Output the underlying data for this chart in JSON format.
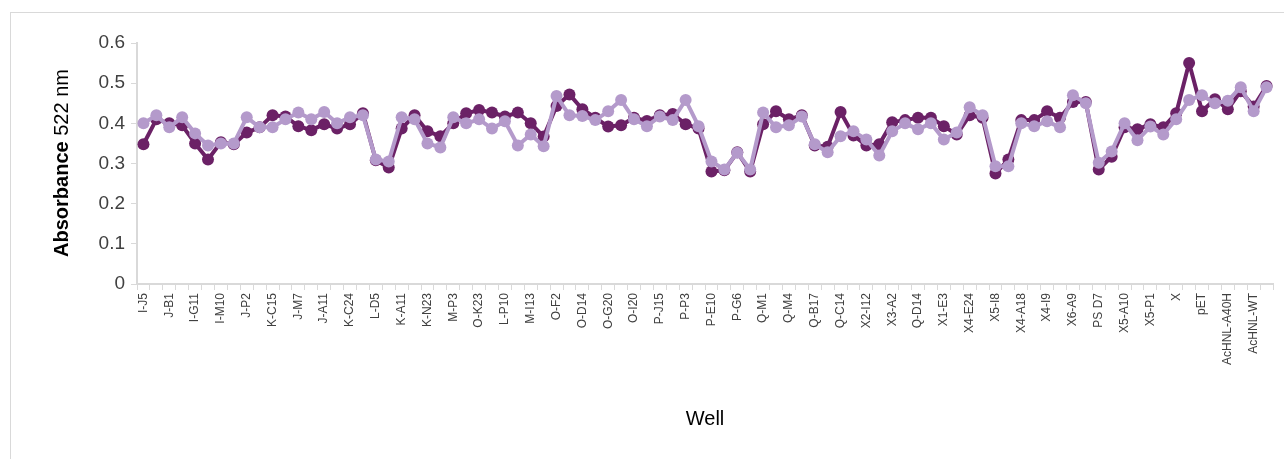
{
  "chart_data": {
    "type": "line",
    "xlabel": "Well",
    "ylabel": "Absorbance 522 nm",
    "categories": [
      "I-J5",
      null,
      "J-B1",
      null,
      "I-G11",
      null,
      "I-M10",
      null,
      "J-P2",
      null,
      "K-C15",
      null,
      "J-M7",
      null,
      "J-A11",
      null,
      "K-C24",
      null,
      "L-D5",
      null,
      "K-A11",
      null,
      "K-N23",
      null,
      "M-P3",
      null,
      "O-K23",
      null,
      "L-P10",
      null,
      "M-I13",
      null,
      "O-F2",
      null,
      "O-D14",
      null,
      "O-G20",
      null,
      "O-I20",
      null,
      "P-J15",
      null,
      "P-P3",
      null,
      "P-E10",
      null,
      "P-G6",
      null,
      "Q-M1",
      null,
      "Q-M4",
      null,
      "Q-B17",
      null,
      "Q-C14",
      null,
      "X2-I12",
      null,
      "X3-A2",
      null,
      "Q-D14",
      null,
      "X1-E3",
      null,
      "X4-E24",
      null,
      "X5-I8",
      null,
      "X4-A18",
      null,
      "X4-I9",
      null,
      "X6-A9",
      null,
      "PS D7",
      null,
      "X5-A10",
      null,
      "X5-P1",
      null,
      "X",
      null,
      "pET",
      null,
      "AcHNL-A40H",
      null,
      "AcHNL-WT",
      null
    ],
    "series": [
      {
        "color": "#b49acb",
        "values": [
          0.4,
          0.42,
          0.39,
          0.415,
          0.375,
          0.345,
          0.35,
          0.35,
          0.415,
          0.39,
          0.39,
          0.41,
          0.427,
          0.41,
          0.428,
          0.4,
          0.415,
          0.42,
          0.31,
          0.305,
          0.415,
          0.41,
          0.35,
          0.34,
          0.415,
          0.4,
          0.41,
          0.387,
          0.405,
          0.345,
          0.372,
          0.343,
          0.468,
          0.42,
          0.418,
          0.408,
          0.43,
          0.458,
          0.41,
          0.393,
          0.417,
          0.408,
          0.458,
          0.393,
          0.305,
          0.285,
          0.327,
          0.285,
          0.427,
          0.39,
          0.395,
          0.417,
          0.348,
          0.328,
          0.368,
          0.38,
          0.36,
          0.32,
          0.38,
          0.4,
          0.385,
          0.4,
          0.36,
          0.377,
          0.44,
          0.42,
          0.293,
          0.293,
          0.4,
          0.393,
          0.405,
          0.39,
          0.47,
          0.45,
          0.302,
          0.33,
          0.4,
          0.358,
          0.392,
          0.372,
          0.41,
          0.458,
          0.47,
          0.45,
          0.456,
          0.49,
          0.43,
          0.49
        ]
      },
      {
        "color": "#6b2166",
        "values": [
          0.348,
          0.41,
          0.4,
          0.395,
          0.35,
          0.31,
          0.353,
          0.348,
          0.377,
          0.39,
          0.42,
          0.417,
          0.393,
          0.383,
          0.398,
          0.387,
          0.398,
          0.425,
          0.308,
          0.29,
          0.387,
          0.42,
          0.38,
          0.368,
          0.4,
          0.425,
          0.433,
          0.427,
          0.417,
          0.427,
          0.4,
          0.367,
          0.443,
          0.472,
          0.435,
          0.414,
          0.392,
          0.395,
          0.414,
          0.406,
          0.42,
          0.423,
          0.398,
          0.387,
          0.28,
          0.283,
          0.328,
          0.28,
          0.398,
          0.43,
          0.41,
          0.42,
          0.345,
          0.342,
          0.428,
          0.37,
          0.345,
          0.348,
          0.403,
          0.408,
          0.414,
          0.414,
          0.393,
          0.372,
          0.42,
          0.414,
          0.275,
          0.31,
          0.408,
          0.408,
          0.43,
          0.414,
          0.453,
          0.453,
          0.285,
          0.317,
          0.39,
          0.385,
          0.398,
          0.39,
          0.425,
          0.55,
          0.43,
          0.46,
          0.435,
          0.48,
          0.442,
          0.493
        ]
      }
    ],
    "ylim": [
      0,
      0.6
    ],
    "yticks": [
      0,
      0.1,
      0.2,
      0.3,
      0.4,
      0.5,
      0.6
    ],
    "grid": false,
    "legend": false,
    "marker": "circle",
    "line_style": "solid"
  }
}
